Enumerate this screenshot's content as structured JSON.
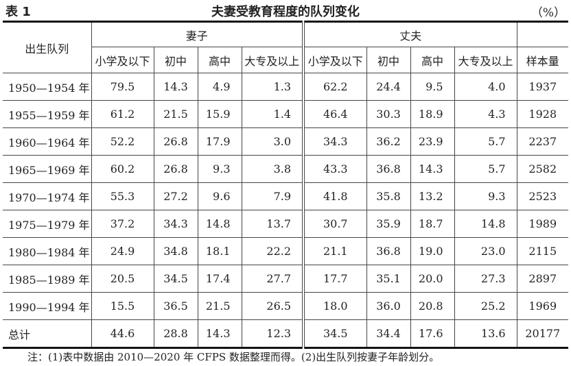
{
  "table_label": "表 1",
  "title": "夫妻受教育程度的队列变化",
  "unit": "（%）",
  "header": {
    "row_label": "出生队列",
    "group_wife": "妻子",
    "group_husband": "丈夫",
    "levels": [
      "小学及以下",
      "初中",
      "高中",
      "大专及以上"
    ],
    "sample": "样本量"
  },
  "rows": [
    {
      "cohort": "1950—1954 年",
      "wife": [
        "79.5",
        "14.3",
        "4.9",
        "1.3"
      ],
      "husband": [
        "62.2",
        "24.4",
        "9.5",
        "4.0"
      ],
      "n": "1937"
    },
    {
      "cohort": "1955—1959 年",
      "wife": [
        "61.2",
        "21.5",
        "15.9",
        "1.4"
      ],
      "husband": [
        "46.4",
        "30.3",
        "18.9",
        "4.3"
      ],
      "n": "1928"
    },
    {
      "cohort": "1960—1964 年",
      "wife": [
        "52.2",
        "26.8",
        "17.9",
        "3.0"
      ],
      "husband": [
        "34.3",
        "36.2",
        "23.9",
        "5.7"
      ],
      "n": "2237"
    },
    {
      "cohort": "1965—1969 年",
      "wife": [
        "60.2",
        "26.8",
        "9.3",
        "3.8"
      ],
      "husband": [
        "43.3",
        "36.8",
        "14.3",
        "5.7"
      ],
      "n": "2582"
    },
    {
      "cohort": "1970—1974 年",
      "wife": [
        "55.3",
        "27.2",
        "9.6",
        "7.9"
      ],
      "husband": [
        "41.8",
        "35.8",
        "13.2",
        "9.3"
      ],
      "n": "2523"
    },
    {
      "cohort": "1975—1979 年",
      "wife": [
        "37.2",
        "34.3",
        "14.8",
        "13.7"
      ],
      "husband": [
        "30.7",
        "35.9",
        "18.7",
        "14.8"
      ],
      "n": "1989"
    },
    {
      "cohort": "1980—1984 年",
      "wife": [
        "24.9",
        "34.8",
        "18.1",
        "22.2"
      ],
      "husband": [
        "21.1",
        "36.8",
        "19.0",
        "23.0"
      ],
      "n": "2115"
    },
    {
      "cohort": "1985—1989 年",
      "wife": [
        "20.5",
        "34.5",
        "17.4",
        "27.7"
      ],
      "husband": [
        "17.7",
        "35.1",
        "20.0",
        "27.3"
      ],
      "n": "2897"
    },
    {
      "cohort": "1990—1994 年",
      "wife": [
        "15.5",
        "36.5",
        "21.5",
        "26.5"
      ],
      "husband": [
        "18.0",
        "36.0",
        "20.8",
        "25.2"
      ],
      "n": "1969"
    },
    {
      "cohort": "总计",
      "wife": [
        "44.6",
        "28.8",
        "14.3",
        "12.3"
      ],
      "husband": [
        "34.5",
        "34.4",
        "17.6",
        "13.6"
      ],
      "n": "20177"
    }
  ],
  "note": "注：(1)表中数据由 2010—2020 年 CFPS 数据整理而得。(2)出生队列按妻子年龄划分。"
}
